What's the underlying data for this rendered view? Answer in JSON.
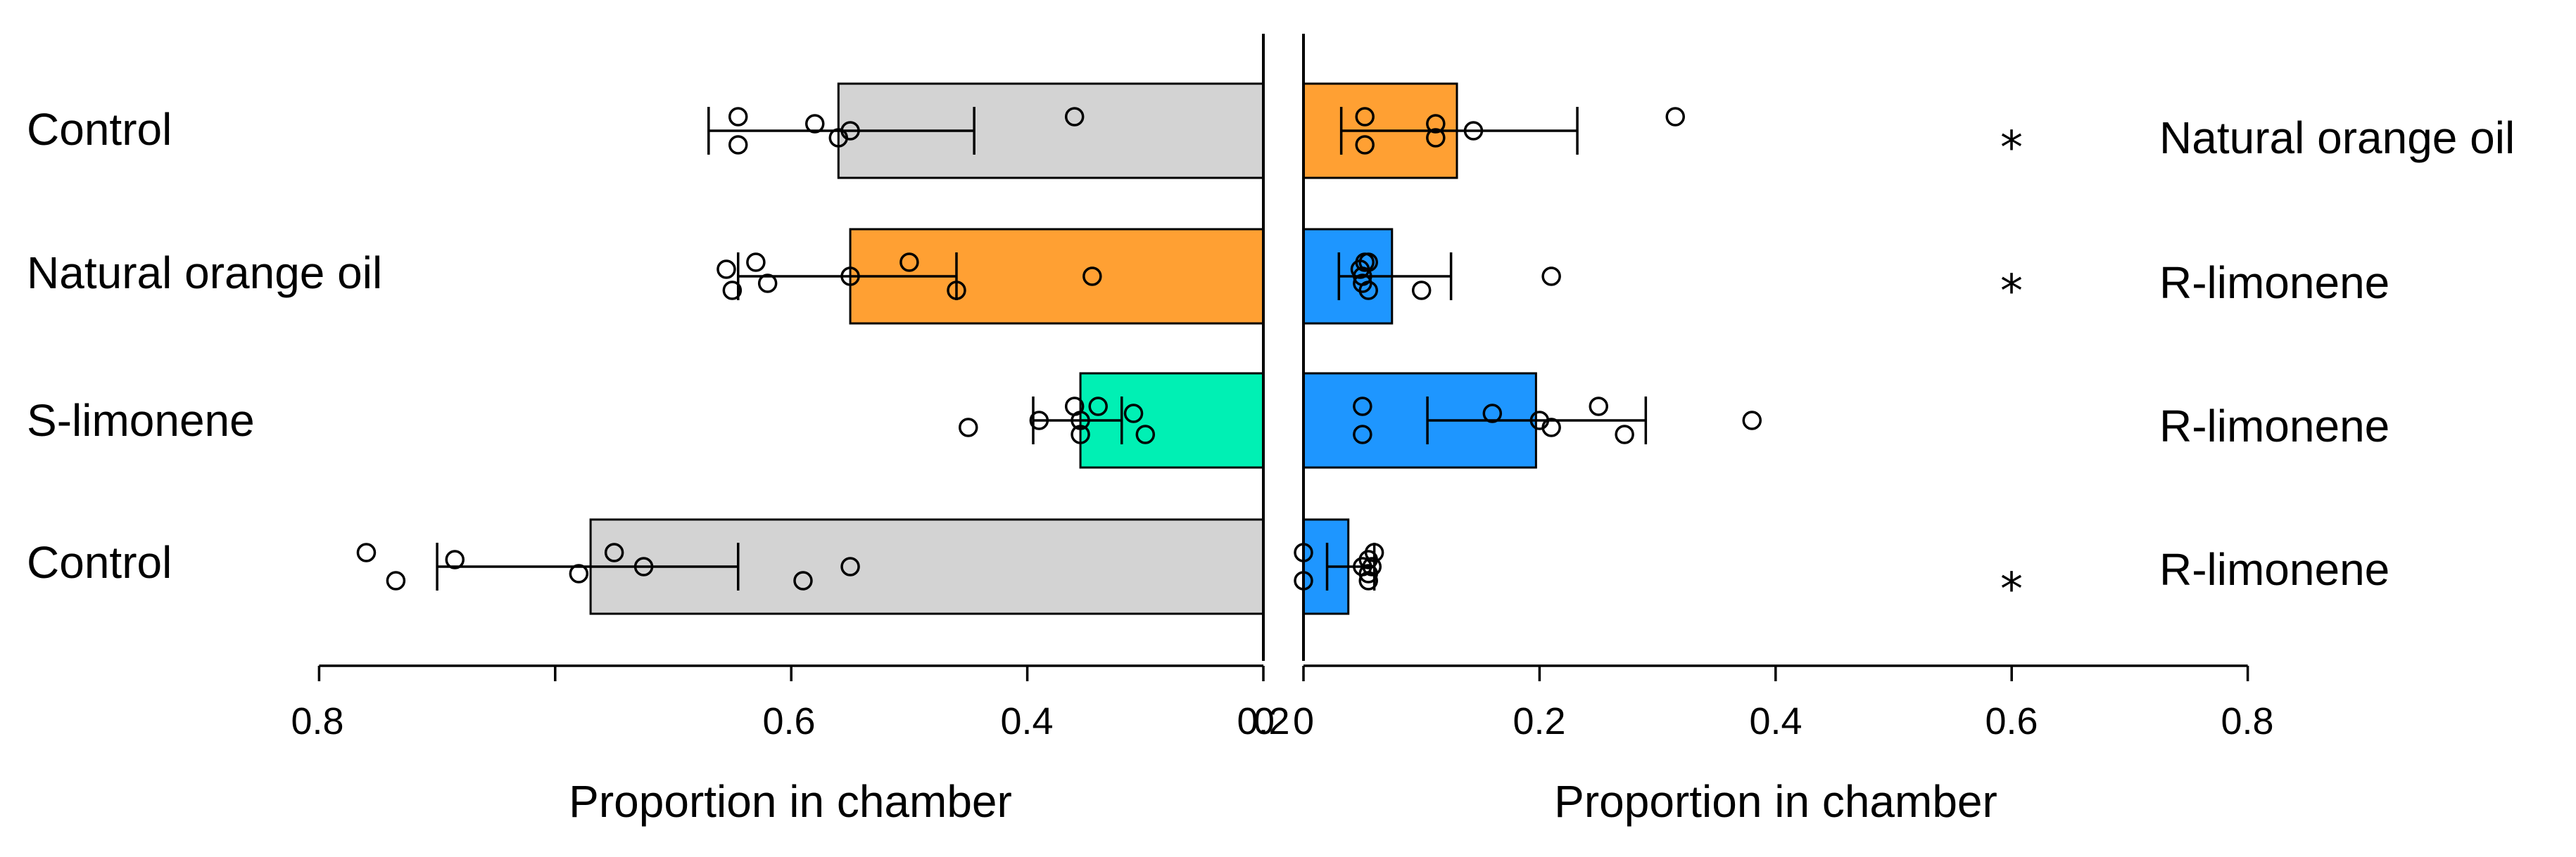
{
  "chart_data": {
    "type": "bar",
    "orientation": "horizontal, two mirrored panels sharing rows",
    "grid": false,
    "rows": [
      {
        "left_label": "Control",
        "right_label": "Natural orange oil",
        "significance": "*",
        "left": {
          "mean": 0.36,
          "error": [
            0.47,
            0.245
          ],
          "color": "#d3d3d3",
          "points": [
            0.445,
            0.445,
            0.38,
            0.36,
            0.35,
            0.16
          ]
        },
        "right": {
          "mean": 0.13,
          "error": [
            0.032,
            0.232
          ],
          "color": "#ffa033",
          "points": [
            0.052,
            0.052,
            0.112,
            0.112,
            0.144,
            0.315
          ]
        }
      },
      {
        "left_label": "Natural orange oil",
        "right_label": "R-limonene",
        "significance": "*",
        "left": {
          "mean": 0.35,
          "error": [
            0.445,
            0.26
          ],
          "color": "#ffa033",
          "points": [
            0.43,
            0.45,
            0.455,
            0.42,
            0.35,
            0.3,
            0.26,
            0.145
          ]
        },
        "right": {
          "mean": 0.075,
          "error": [
            0.03,
            0.125
          ],
          "color": "#1e96ff",
          "points": [
            0.052,
            0.055,
            0.048,
            0.05,
            0.05,
            0.055,
            0.1,
            0.21
          ]
        }
      },
      {
        "left_label": "S-limonene",
        "right_label": "R-limonene",
        "significance": "",
        "left": {
          "mean": 0.155,
          "error": [
            0.195,
            0.12
          ],
          "color": "#00f0b4",
          "points": [
            0.14,
            0.155,
            0.11,
            0.25,
            0.19,
            0.16,
            0.1,
            0.155
          ]
        },
        "right": {
          "mean": 0.197,
          "error": [
            0.105,
            0.29
          ],
          "color": "#1e96ff",
          "points": [
            0.05,
            0.05,
            0.16,
            0.21,
            0.2,
            0.25,
            0.272,
            0.38
          ]
        }
      },
      {
        "left_label": "Control",
        "right_label": "R-limonene",
        "significance": "*",
        "left": {
          "mean": 0.57,
          "error": [
            0.7,
            0.445
          ],
          "color": "#d3d3d3",
          "points": [
            0.76,
            0.735,
            0.685,
            0.58,
            0.525,
            0.55,
            0.39,
            0.35
          ]
        },
        "right": {
          "mean": 0.038,
          "error": [
            0.02,
            0.06
          ],
          "color": "#1e96ff",
          "points": [
            0.0,
            0.0,
            0.055,
            0.055,
            0.05,
            0.06,
            0.055,
            0.058
          ]
        }
      }
    ],
    "left_axis": {
      "xlim": [
        0.8,
        0
      ],
      "ticks": [
        "0.8",
        "0.6",
        "0.4",
        "0.2",
        "0"
      ],
      "xlabel": "Proportion in chamber"
    },
    "right_axis": {
      "xlim": [
        0,
        0.8
      ],
      "ticks": [
        "0",
        "0.2",
        "0.4",
        "0.6",
        "0.8"
      ],
      "xlabel": "Proportion in chamber"
    }
  }
}
